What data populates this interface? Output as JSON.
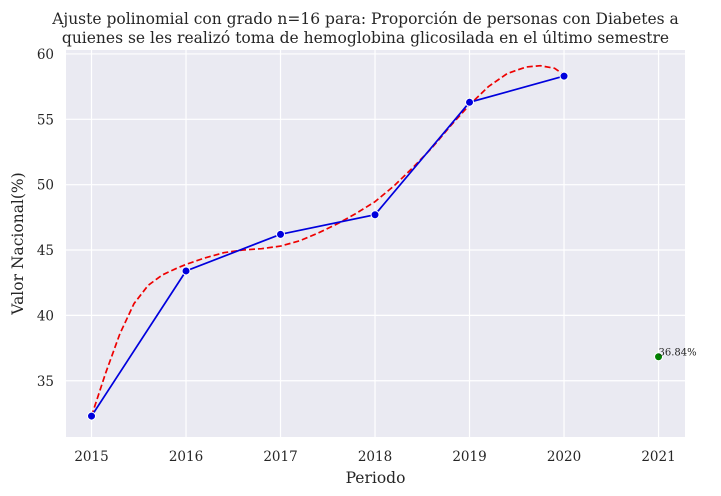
{
  "chart_data": {
    "type": "line",
    "title_lines": [
      "Ajuste polinomial con grado n=16 para: Proporción de personas con Diabetes a",
      "quienes se les realizó toma de hemoglobina glicosilada en el último semestre"
    ],
    "xlabel": "Periodo",
    "ylabel": "Valor Nacional(%)",
    "x_ticks": [
      2015,
      2016,
      2017,
      2018,
      2019,
      2020,
      2021
    ],
    "y_ticks": [
      35,
      40,
      45,
      50,
      55,
      60
    ],
    "xlim": [
      2014.73,
      2021.28
    ],
    "ylim": [
      30.7,
      60.3
    ],
    "grid": true,
    "series": [
      {
        "kind": "observed",
        "color": "#0000dd",
        "x": [
          2015,
          2016,
          2017,
          2018,
          2019,
          2020
        ],
        "y": [
          32.3,
          43.4,
          46.2,
          47.7,
          56.3,
          58.3
        ]
      },
      {
        "kind": "fit",
        "color": "#ee0000",
        "style": "dashed",
        "x": [
          2015,
          2015.15,
          2015.3,
          2015.45,
          2015.6,
          2015.75,
          2015.9,
          2016,
          2016.2,
          2016.4,
          2016.6,
          2016.8,
          2017,
          2017.2,
          2017.4,
          2017.6,
          2017.8,
          2018,
          2018.2,
          2018.4,
          2018.6,
          2018.8,
          2019,
          2019.2,
          2019.4,
          2019.6,
          2019.75,
          2019.9,
          2020
        ],
        "y": [
          32.3,
          35.6,
          38.6,
          40.9,
          42.3,
          43.1,
          43.6,
          43.9,
          44.4,
          44.8,
          45.0,
          45.1,
          45.3,
          45.7,
          46.3,
          47.0,
          47.8,
          48.7,
          49.9,
          51.3,
          52.8,
          54.5,
          56.1,
          57.5,
          58.5,
          59.0,
          59.1,
          58.9,
          58.4
        ]
      },
      {
        "kind": "prediction",
        "color": "#008000",
        "x": [
          2021
        ],
        "y": [
          36.84
        ],
        "label": "36.84%"
      }
    ]
  }
}
